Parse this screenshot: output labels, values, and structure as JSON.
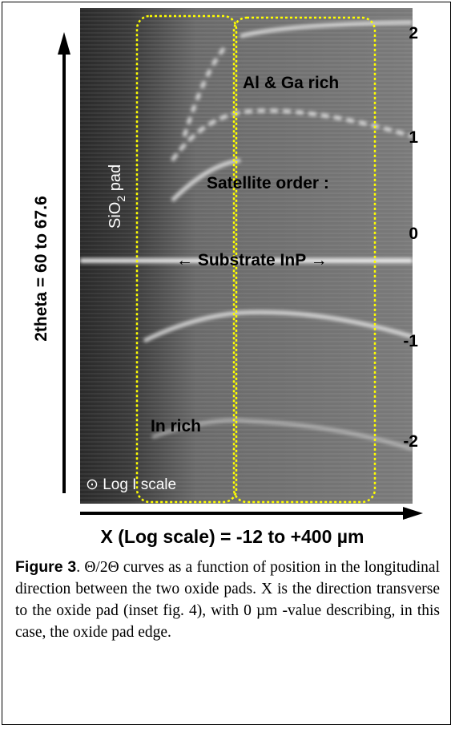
{
  "figure": {
    "y_axis_label": "2theta = 60 to 67.6",
    "x_axis_label": "X (Log scale) = -12 to +400 µm",
    "sio2_label": {
      "main": "SiO",
      "sub": "2",
      "rest": " pad"
    },
    "annotations": {
      "al_ga": "Al & Ga rich",
      "satellite": "Satellite order :",
      "substrate": "← Substrate  InP →",
      "in_rich": "In rich",
      "log_scale": "⊙  Log I scale"
    },
    "orders": [
      "2",
      "1",
      "0",
      "-1",
      "-2"
    ]
  },
  "caption": {
    "label": "Figure 3",
    "text": ". Θ/2Θ curves as a function of position in the longitudinal direction between the two oxide pads. X is the direction transverse to the oxide pad (inset fig. 4), with 0 µm -value describing, in this case,  the oxide pad edge."
  }
}
